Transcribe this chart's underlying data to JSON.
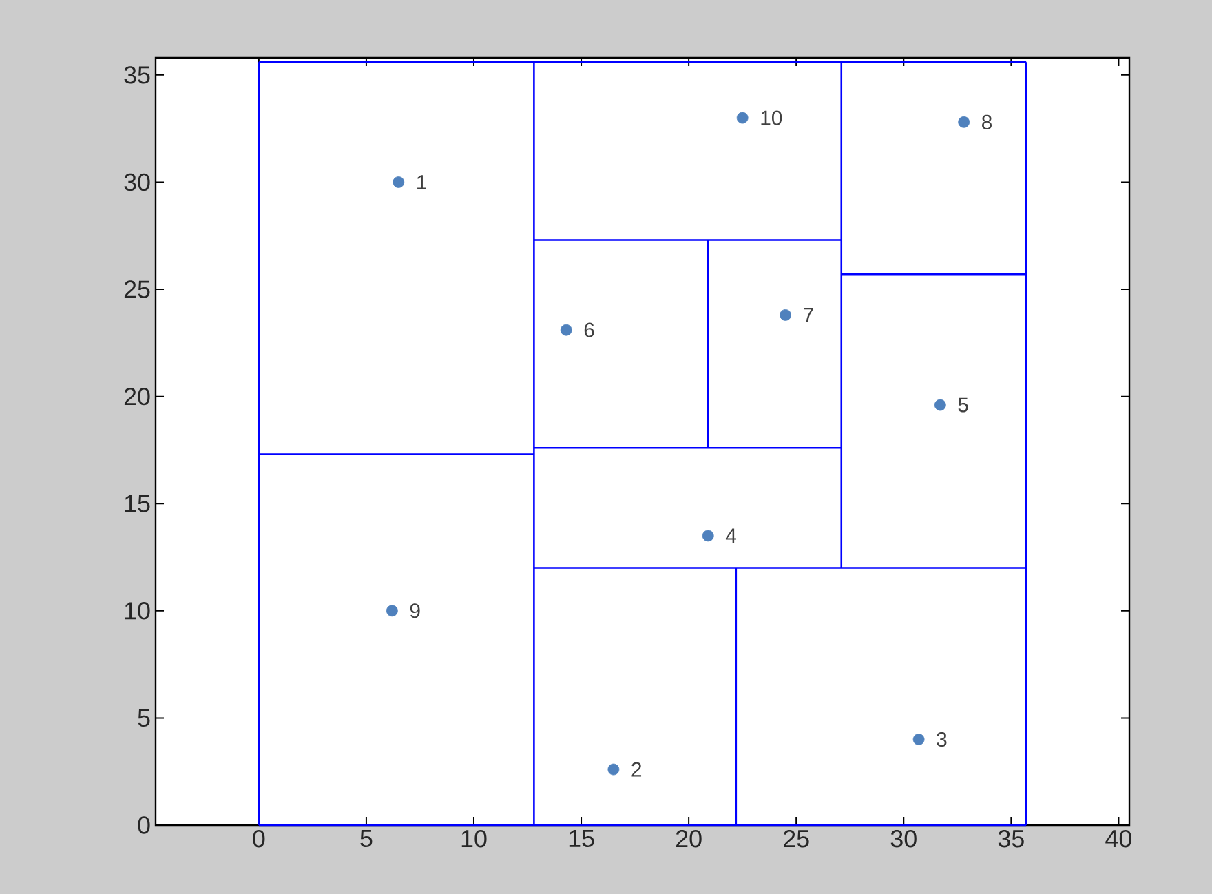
{
  "chart_data": {
    "type": "scatter",
    "xlim": [
      -4.8,
      40.5
    ],
    "ylim": [
      0,
      35.8
    ],
    "xticks": [
      0,
      5,
      10,
      15,
      20,
      25,
      30,
      35,
      40
    ],
    "yticks": [
      0,
      5,
      10,
      15,
      20,
      25,
      30,
      35
    ],
    "grid": false,
    "annotations": [
      {
        "text": "1",
        "x": 6.5,
        "y": 30.0
      },
      {
        "text": "2",
        "x": 16.5,
        "y": 2.6
      },
      {
        "text": "3",
        "x": 30.7,
        "y": 4.0
      },
      {
        "text": "4",
        "x": 20.9,
        "y": 13.5
      },
      {
        "text": "5",
        "x": 31.7,
        "y": 19.6
      },
      {
        "text": "6",
        "x": 14.3,
        "y": 23.1
      },
      {
        "text": "7",
        "x": 24.5,
        "y": 23.8
      },
      {
        "text": "8",
        "x": 32.8,
        "y": 32.8
      },
      {
        "text": "9",
        "x": 6.2,
        "y": 10.0
      },
      {
        "text": "10",
        "x": 22.5,
        "y": 33.0
      }
    ],
    "series": [
      {
        "color": "#4f81bd",
        "marker": "circle",
        "x": [
          6.5,
          16.5,
          30.7,
          20.9,
          31.7,
          14.3,
          24.5,
          32.8,
          6.2,
          22.5
        ],
        "values": [
          30.0,
          2.6,
          4.0,
          13.5,
          19.6,
          23.1,
          23.8,
          32.8,
          10.0,
          33.0
        ]
      },
      {
        "type": "line",
        "color": "#0000ff",
        "marker": "none",
        "x": [
          0,
          35.7
        ],
        "values": [
          0,
          0
        ]
      },
      {
        "type": "line",
        "color": "#0000ff",
        "marker": "none",
        "x": [
          35.7,
          35.7
        ],
        "values": [
          0,
          35.6
        ]
      },
      {
        "type": "line",
        "color": "#0000ff",
        "marker": "none",
        "x": [
          0,
          35.7
        ],
        "values": [
          35.6,
          35.6
        ]
      },
      {
        "type": "line",
        "color": "#0000ff",
        "marker": "none",
        "x": [
          0,
          0
        ],
        "values": [
          0,
          35.6
        ]
      },
      {
        "type": "line",
        "color": "#0000ff",
        "marker": "none",
        "x": [
          12.8,
          12.8
        ],
        "values": [
          0,
          35.6
        ]
      },
      {
        "type": "line",
        "color": "#0000ff",
        "marker": "none",
        "x": [
          0,
          12.8
        ],
        "values": [
          17.3,
          17.3
        ]
      },
      {
        "type": "line",
        "color": "#0000ff",
        "marker": "none",
        "x": [
          27.1,
          27.1
        ],
        "values": [
          12.0,
          35.6
        ]
      },
      {
        "type": "line",
        "color": "#0000ff",
        "marker": "none",
        "x": [
          12.8,
          35.7
        ],
        "values": [
          12.0,
          12.0
        ]
      },
      {
        "type": "line",
        "color": "#0000ff",
        "marker": "none",
        "x": [
          22.2,
          22.2
        ],
        "values": [
          0,
          12.0
        ]
      },
      {
        "type": "line",
        "color": "#0000ff",
        "marker": "none",
        "x": [
          12.8,
          27.1
        ],
        "values": [
          17.6,
          17.6
        ]
      },
      {
        "type": "line",
        "color": "#0000ff",
        "marker": "none",
        "x": [
          12.8,
          27.1
        ],
        "values": [
          27.3,
          27.3
        ]
      },
      {
        "type": "line",
        "color": "#0000ff",
        "marker": "none",
        "x": [
          20.9,
          20.9
        ],
        "values": [
          17.6,
          27.3
        ]
      },
      {
        "type": "line",
        "color": "#0000ff",
        "marker": "none",
        "x": [
          27.1,
          35.7
        ],
        "values": [
          25.7,
          25.7
        ]
      }
    ]
  }
}
